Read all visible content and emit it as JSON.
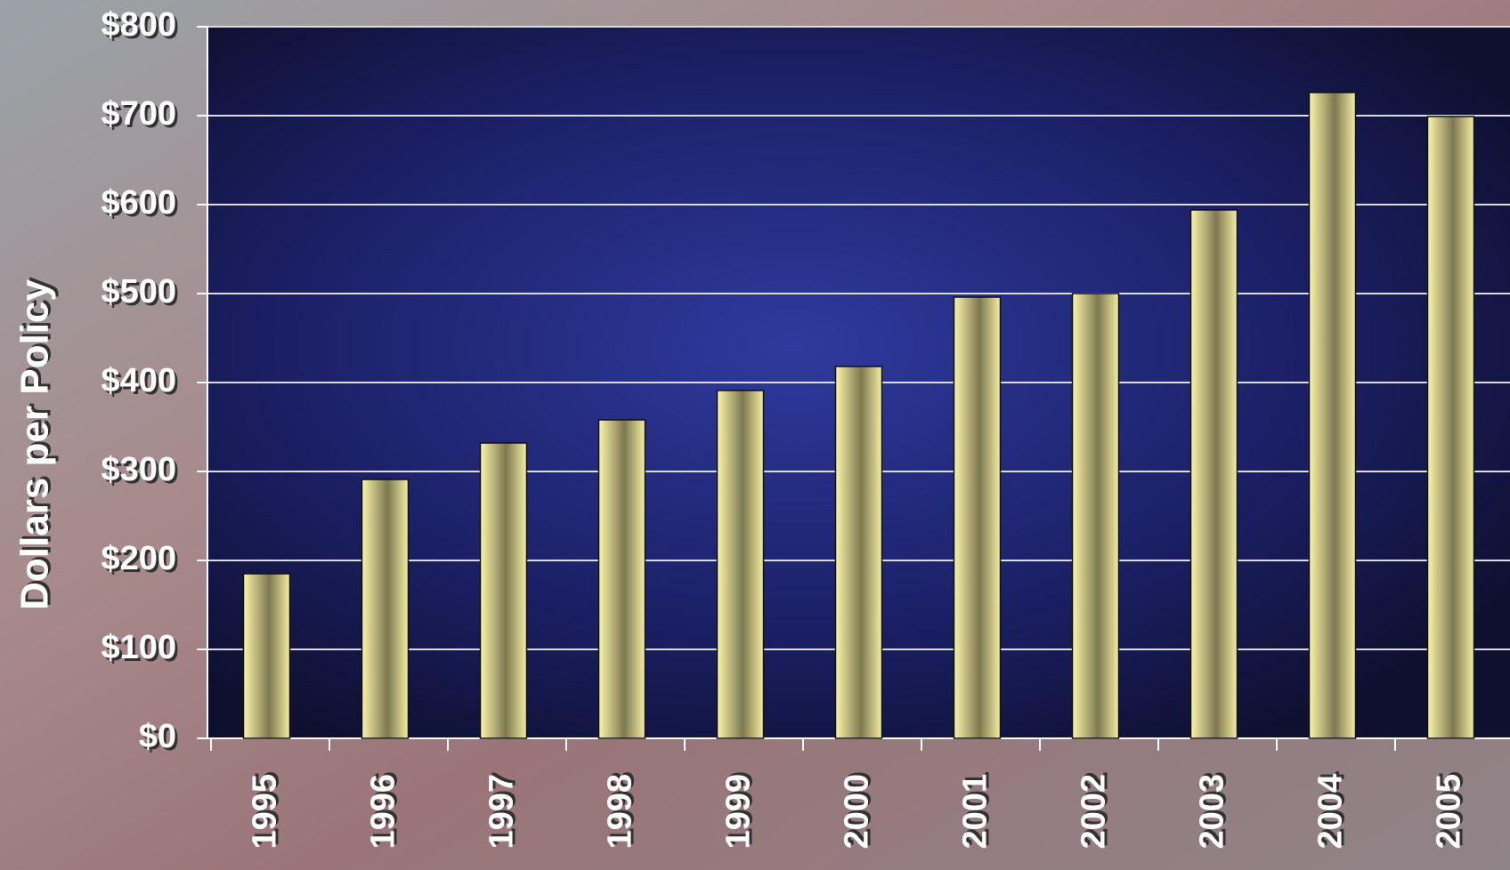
{
  "chart_data": {
    "type": "bar",
    "y_label": "Dollars per Policy",
    "categories": [
      "1995",
      "1996",
      "1997",
      "1998",
      "1999",
      "2000",
      "2001",
      "2002",
      "2003",
      "2004",
      "2005"
    ],
    "values": [
      185,
      291,
      332,
      358,
      391,
      418,
      496,
      500,
      594,
      726,
      699
    ],
    "color": "#e8e08a",
    "ylim": [
      0,
      800
    ],
    "yticks": [
      {
        "value": 0,
        "label": "$0"
      },
      {
        "value": 100,
        "label": "$100"
      },
      {
        "value": 200,
        "label": "$200"
      },
      {
        "value": 300,
        "label": "$300"
      },
      {
        "value": 400,
        "label": "$400"
      },
      {
        "value": 500,
        "label": "$500"
      },
      {
        "value": 600,
        "label": "$600"
      },
      {
        "value": 700,
        "label": "$700"
      },
      {
        "value": 800,
        "label": "$800"
      }
    ],
    "grid": true
  }
}
